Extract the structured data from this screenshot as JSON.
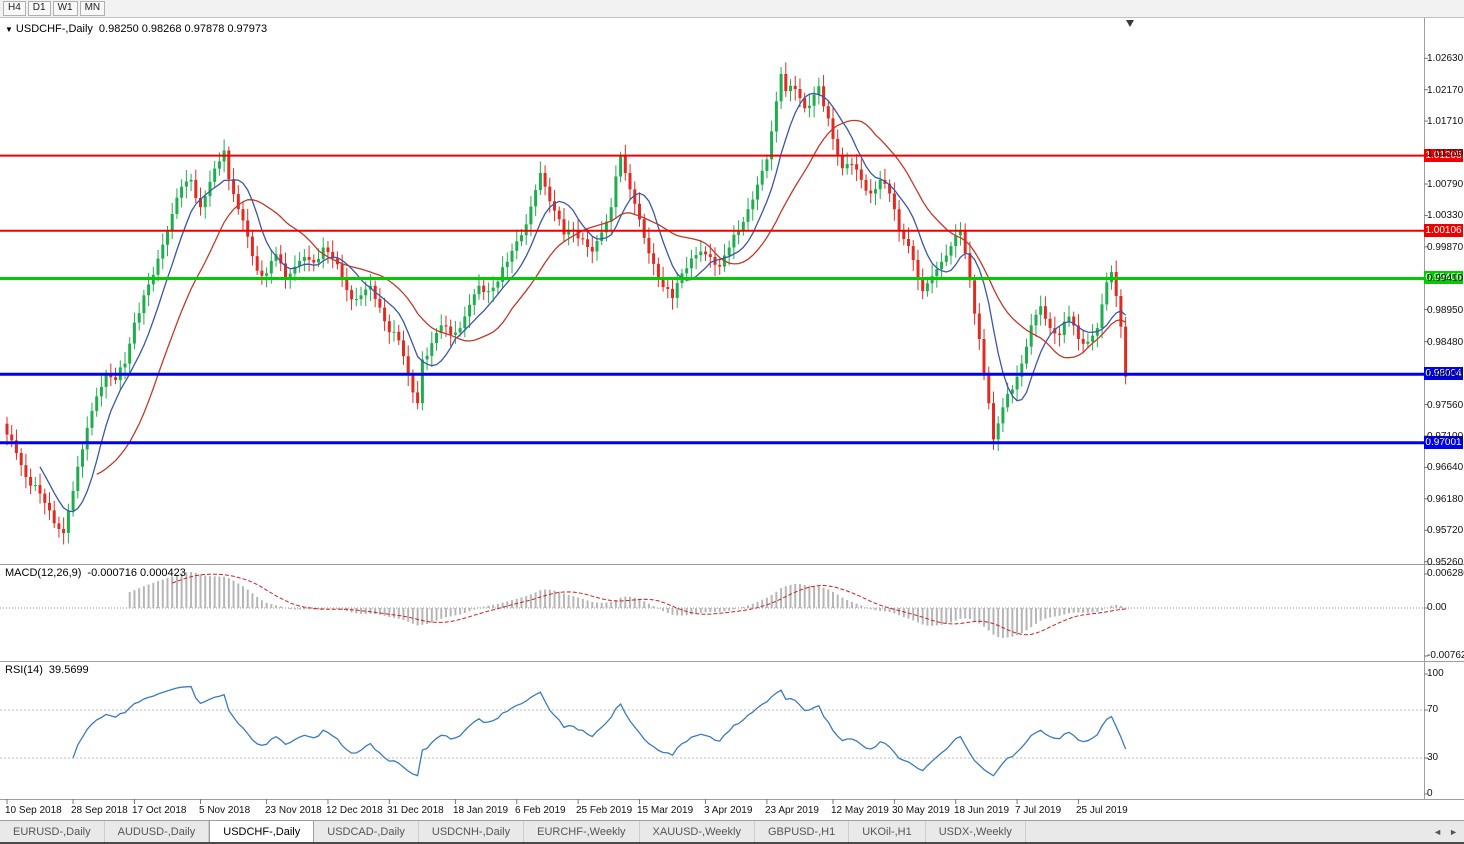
{
  "toolbar": {
    "timeframes": [
      "H4",
      "D1",
      "W1",
      "MN"
    ]
  },
  "icons": {
    "dropdown": "▼",
    "tab_left_arrow": "◄",
    "tab_right_arrow": "►"
  },
  "chart": {
    "title": "USDCHF-,Daily",
    "ohlc": "0.98250 0.98268 0.97878 0.97973"
  },
  "macd": {
    "label": "MACD(12,26,9)",
    "values": "-0.000716 0.000423",
    "axis": [
      "0.006286",
      "0.00",
      "-0.00762"
    ]
  },
  "rsi": {
    "label": "RSI(14)",
    "value": "39.5699",
    "axis": [
      "100",
      "70",
      "30",
      "0"
    ],
    "levels": [
      70,
      30
    ]
  },
  "tabs": {
    "items": [
      "EURUSD-,Daily",
      "AUDUSD-,Daily",
      "USDCHF-,Daily",
      "USDCAD-,Daily",
      "USDCNH-,Daily",
      "EURCHF-,Weekly",
      "XAUUSD-,Weekly",
      "GBPUSD-,H1",
      "UKOil-,H1",
      "USDX-,Weekly"
    ],
    "active_index": 2
  },
  "chart_data": {
    "type": "candlestick",
    "symbol": "USDCHF-",
    "timeframe": "Daily",
    "price_min": 0.9524,
    "price_max": 1.0322,
    "price_axis_ticks": [
      "1.02630",
      "1.02170",
      "1.01710",
      "1.01250",
      "1.00790",
      "1.00330",
      "0.99870",
      "0.99410",
      "0.98950",
      "0.98480",
      "0.98010",
      "0.97560",
      "0.97100",
      "0.96640",
      "0.96180",
      "0.95720",
      "0.95260"
    ],
    "levels": [
      {
        "price": 1.01205,
        "label": "1.01205",
        "color": "#f00000",
        "width": 2
      },
      {
        "price": 1.00106,
        "label": "1.00106",
        "color": "#f00000",
        "width": 2
      },
      {
        "price": 0.99406,
        "label": "0.99406",
        "color": "#00cc00",
        "width": 3
      },
      {
        "price": 0.98004,
        "label": "0.98004",
        "color": "#0000f0",
        "width": 3
      },
      {
        "price": 0.97001,
        "label": "0.97001",
        "color": "#0000f0",
        "width": 3
      }
    ],
    "x_axis_dates": [
      {
        "label": "10 Sep 2018",
        "i": 0
      },
      {
        "label": "28 Sep 2018",
        "i": 14
      },
      {
        "label": "17 Oct 2018",
        "i": 27
      },
      {
        "label": "5 Nov 2018",
        "i": 41
      },
      {
        "label": "23 Nov 2018",
        "i": 55
      },
      {
        "label": "12 Dec 2018",
        "i": 68
      },
      {
        "label": "31 Dec 2018",
        "i": 81
      },
      {
        "label": "18 Jan 2019",
        "i": 95
      },
      {
        "label": "6 Feb 2019",
        "i": 108
      },
      {
        "label": "25 Feb 2019",
        "i": 121
      },
      {
        "label": "15 Mar 2019",
        "i": 134
      },
      {
        "label": "3 Apr 2019",
        "i": 148
      },
      {
        "label": "23 Apr 2019",
        "i": 161
      },
      {
        "label": "12 May 2019",
        "i": 175
      },
      {
        "label": "30 May 2019",
        "i": 188
      },
      {
        "label": "18 Jun 2019",
        "i": 201
      },
      {
        "label": "7 Jul 2019",
        "i": 214
      },
      {
        "label": "25 Jul 2019",
        "i": 227
      }
    ],
    "candle_count": 238,
    "close_anchors": [
      [
        0,
        0.9712
      ],
      [
        2,
        0.9685
      ],
      [
        4,
        0.965
      ],
      [
        6,
        0.9638
      ],
      [
        8,
        0.9612
      ],
      [
        10,
        0.9582
      ],
      [
        12,
        0.9568
      ],
      [
        13,
        0.9601
      ],
      [
        15,
        0.9665
      ],
      [
        17,
        0.9722
      ],
      [
        19,
        0.9768
      ],
      [
        21,
        0.98
      ],
      [
        23,
        0.9792
      ],
      [
        25,
        0.9816
      ],
      [
        27,
        0.9876
      ],
      [
        29,
        0.9916
      ],
      [
        31,
        0.9946
      ],
      [
        33,
        0.999
      ],
      [
        35,
        1.0035
      ],
      [
        37,
        1.0075
      ],
      [
        39,
        1.0085
      ],
      [
        41,
        1.0045
      ],
      [
        43,
        1.0082
      ],
      [
        45,
        1.0112
      ],
      [
        46,
        1.0128
      ],
      [
        47,
        1.0086
      ],
      [
        49,
        1.0042
      ],
      [
        51,
        1.0002
      ],
      [
        53,
        0.9952
      ],
      [
        55,
        0.9948
      ],
      [
        57,
        0.9976
      ],
      [
        59,
        0.9942
      ],
      [
        61,
        0.9958
      ],
      [
        63,
        0.9972
      ],
      [
        65,
        0.9964
      ],
      [
        67,
        0.9986
      ],
      [
        69,
        0.997
      ],
      [
        71,
        0.994
      ],
      [
        73,
        0.991
      ],
      [
        75,
        0.9916
      ],
      [
        77,
        0.993
      ],
      [
        79,
        0.9898
      ],
      [
        81,
        0.9862
      ],
      [
        83,
        0.985
      ],
      [
        85,
        0.98
      ],
      [
        87,
        0.9758
      ],
      [
        88,
        0.9822
      ],
      [
        90,
        0.9846
      ],
      [
        92,
        0.9872
      ],
      [
        94,
        0.9858
      ],
      [
        96,
        0.9868
      ],
      [
        98,
        0.9902
      ],
      [
        100,
        0.993
      ],
      [
        102,
        0.9922
      ],
      [
        104,
        0.9936
      ],
      [
        106,
        0.9965
      ],
      [
        108,
        0.9995
      ],
      [
        110,
        1.002
      ],
      [
        112,
        1.007
      ],
      [
        113,
        1.0095
      ],
      [
        114,
        1.0075
      ],
      [
        116,
        1.004
      ],
      [
        118,
        1.0005
      ],
      [
        120,
        1.001
      ],
      [
        122,
        0.9998
      ],
      [
        124,
        0.998
      ],
      [
        126,
        1.0008
      ],
      [
        128,
        1.0045
      ],
      [
        129,
        1.009
      ],
      [
        130,
        1.012
      ],
      [
        131,
        1.0095
      ],
      [
        133,
        1.005
      ],
      [
        135,
        1.0
      ],
      [
        137,
        0.9962
      ],
      [
        139,
        0.9928
      ],
      [
        141,
        0.9912
      ],
      [
        143,
        0.9948
      ],
      [
        145,
        0.997
      ],
      [
        147,
        0.998
      ],
      [
        149,
        0.9972
      ],
      [
        151,
        0.9958
      ],
      [
        153,
        0.9986
      ],
      [
        155,
        1.001
      ],
      [
        157,
        1.0042
      ],
      [
        159,
        1.0078
      ],
      [
        161,
        1.0115
      ],
      [
        163,
        1.02
      ],
      [
        164,
        1.024
      ],
      [
        165,
        1.0215
      ],
      [
        167,
        1.0218
      ],
      [
        169,
        1.019
      ],
      [
        171,
        1.021
      ],
      [
        172,
        1.0222
      ],
      [
        174,
        1.0175
      ],
      [
        175,
        1.0145
      ],
      [
        177,
        1.0102
      ],
      [
        179,
        1.0108
      ],
      [
        181,
        1.0085
      ],
      [
        183,
        1.0065
      ],
      [
        185,
        1.0085
      ],
      [
        187,
        1.0065
      ],
      [
        188,
        1.0042
      ],
      [
        189,
        1.001
      ],
      [
        191,
        0.9988
      ],
      [
        193,
        0.994
      ],
      [
        194,
        0.9922
      ],
      [
        196,
        0.9944
      ],
      [
        198,
        0.9965
      ],
      [
        200,
        0.9988
      ],
      [
        202,
        1.001
      ],
      [
        204,
        0.9938
      ],
      [
        206,
        0.9852
      ],
      [
        208,
        0.9758
      ],
      [
        209,
        0.9705
      ],
      [
        211,
        0.9752
      ],
      [
        213,
        0.9778
      ],
      [
        215,
        0.9816
      ],
      [
        217,
        0.9872
      ],
      [
        219,
        0.99
      ],
      [
        221,
        0.9868
      ],
      [
        223,
        0.9858
      ],
      [
        225,
        0.9885
      ],
      [
        227,
        0.9852
      ],
      [
        229,
        0.9848
      ],
      [
        231,
        0.9868
      ],
      [
        233,
        0.9935
      ],
      [
        234,
        0.995
      ],
      [
        235,
        0.9915
      ],
      [
        236,
        0.987
      ],
      [
        237,
        0.9797
      ]
    ],
    "colors": {
      "bull": "#1fae4d",
      "bear": "#e02b22",
      "ma_fast": "#3a57a7",
      "ma_slow": "#c0392b",
      "macd_hist": "#b6b6b6",
      "macd_signal": "#cc2222",
      "rsi_line": "#3b7bbf"
    },
    "indicators": {
      "ma_fast_period": 8,
      "ma_slow_period": 20,
      "macd_params": [
        12,
        26,
        9
      ],
      "rsi_period": 14
    }
  }
}
